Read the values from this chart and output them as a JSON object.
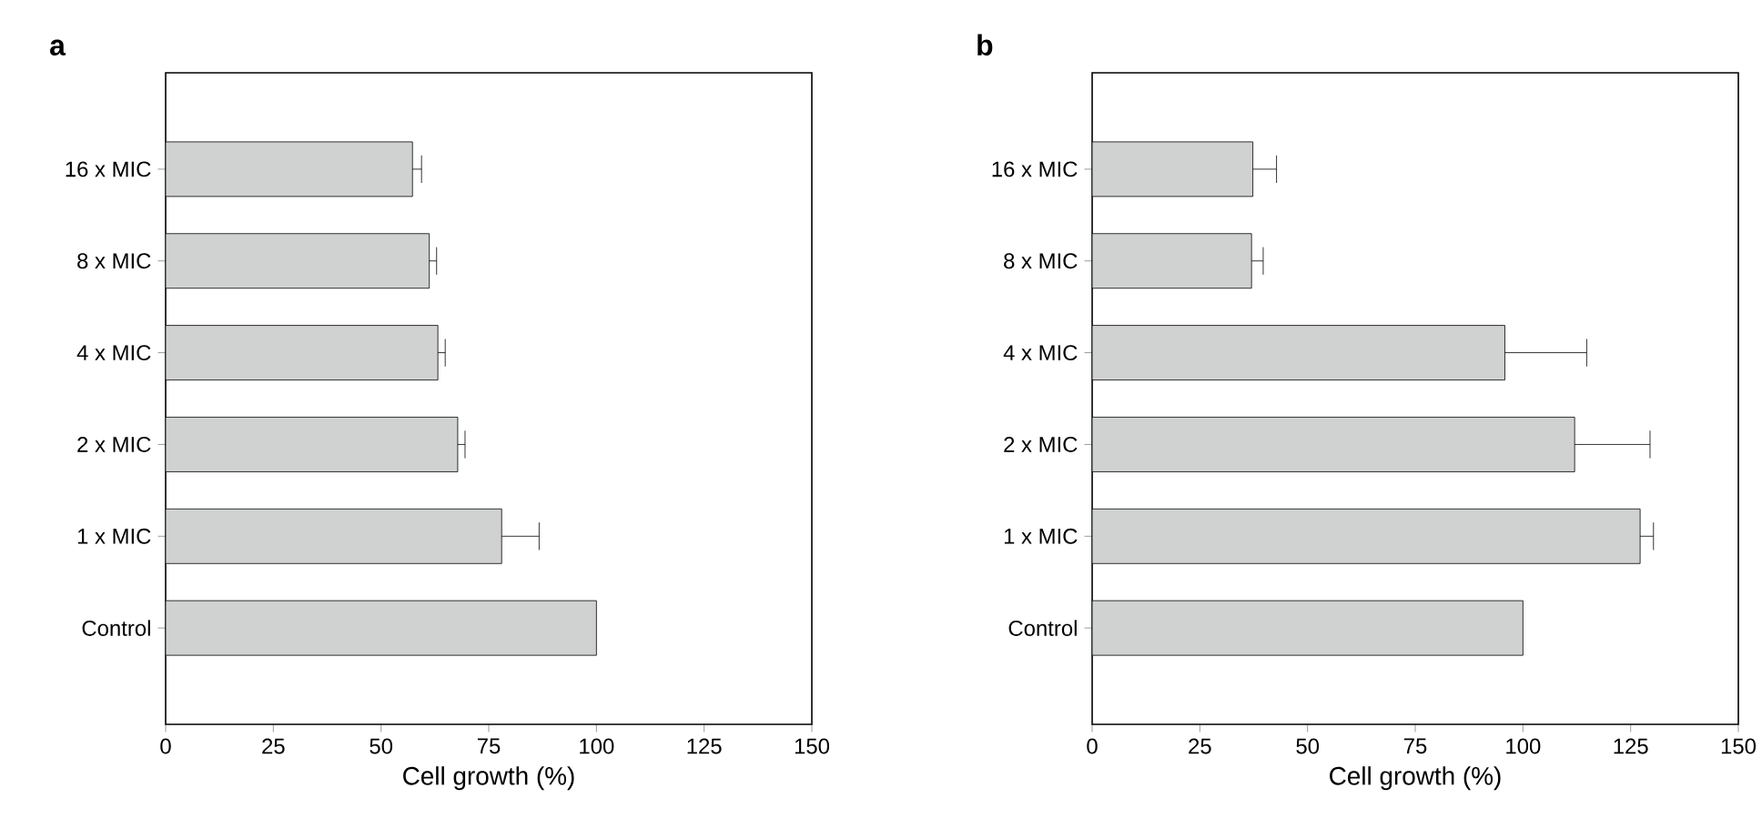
{
  "chart_data": [
    {
      "type": "bar",
      "orientation": "horizontal",
      "title": "a",
      "xlabel": "Cell growth (%)",
      "categories": [
        "16 x MIC",
        "8 x MIC",
        "4 x MIC",
        "2 x MIC",
        "1 x MIC",
        "Control"
      ],
      "values": [
        57.3,
        61.2,
        63.2,
        67.8,
        78.0,
        100
      ],
      "errors": [
        2.1,
        1.7,
        1.7,
        1.7,
        8.7,
        null
      ],
      "color": "#d0d2d2",
      "xlim": [
        0,
        150
      ],
      "xticks": [
        0,
        25,
        50,
        75,
        100,
        125,
        150
      ],
      "grid": false
    },
    {
      "type": "bar",
      "orientation": "horizontal",
      "title": "b",
      "xlabel": "Cell growth (%)",
      "categories": [
        "16 x MIC",
        "8 x MIC",
        "4 x MIC",
        "2 x MIC",
        "1 x MIC",
        "Control"
      ],
      "values": [
        37.3,
        37.0,
        95.8,
        112.0,
        127.2,
        100
      ],
      "errors": [
        5.5,
        2.7,
        19.0,
        17.5,
        3.1,
        null
      ],
      "color": "#d0d2d2",
      "xlim": [
        0,
        150
      ],
      "xticks": [
        0,
        25,
        50,
        75,
        100,
        125,
        150
      ],
      "grid": false
    }
  ]
}
